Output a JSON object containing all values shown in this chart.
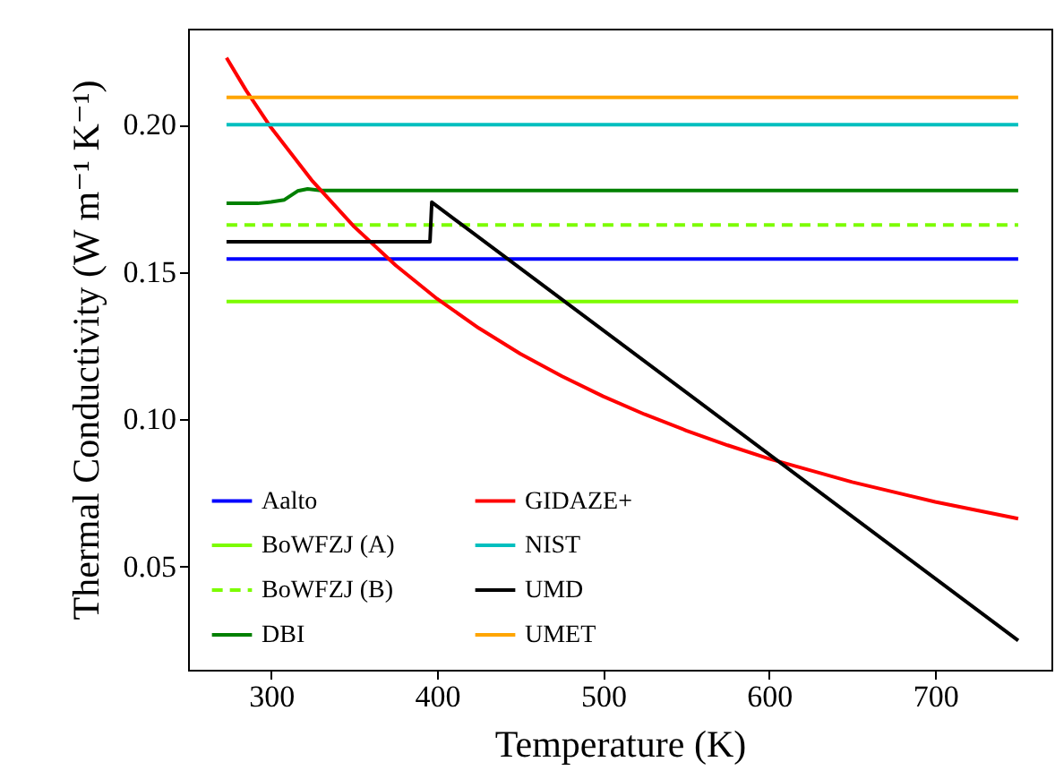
{
  "chart_data": {
    "type": "line",
    "xlabel": "Temperature (K)",
    "ylabel": "Thermal Conductivity (W m⁻¹ K⁻¹)",
    "xlim": [
      250,
      770
    ],
    "ylim": [
      0.015,
      0.2326
    ],
    "xticks": [
      300,
      400,
      500,
      600,
      700
    ],
    "yticks": [
      0.05,
      {
        "value": 0.1,
        "label": "0.10"
      },
      0.15,
      {
        "value": 0.2,
        "label": "0.20"
      }
    ],
    "grid": false,
    "legend": "bottom left",
    "line_style": "solid",
    "series": [
      {
        "name": "Aalto",
        "color": "#0000ff",
        "x": [
          273.15,
          750
        ],
        "values": [
          0.1544,
          0.1544
        ]
      },
      {
        "name": "BoWFZJ (A)",
        "color": "#7cfc00",
        "x": [
          273.15,
          750
        ],
        "values": [
          0.14,
          0.14
        ]
      },
      {
        "name": "BoWFZJ (B)",
        "color": "#7cfc00",
        "line_style": "dashed",
        "x": [
          273.15,
          750
        ],
        "values": [
          0.166,
          0.166
        ]
      },
      {
        "name": "DBI",
        "color": "#008000",
        "x": [
          273.15,
          292,
          300,
          308,
          316,
          322,
          330,
          750
        ],
        "values": [
          0.1733,
          0.1733,
          0.1738,
          0.1745,
          0.1775,
          0.1782,
          0.1777,
          0.1777
        ]
      },
      {
        "name": "GIDAZE+",
        "color": "#ff0000",
        "x": [
          273.15,
          285,
          300,
          325,
          350,
          375,
          400,
          425,
          450,
          475,
          500,
          525,
          550,
          575,
          600,
          650,
          700,
          750
        ],
        "values": [
          0.2227,
          0.2116,
          0.199,
          0.1808,
          0.1654,
          0.1523,
          0.1409,
          0.131,
          0.1223,
          0.1147,
          0.1078,
          0.1017,
          0.0962,
          0.0912,
          0.0866,
          0.0787,
          0.072,
          0.0663
        ]
      },
      {
        "name": "NIST",
        "color": "#00bfbf",
        "x": [
          273.15,
          750
        ],
        "values": [
          0.2,
          0.2
        ]
      },
      {
        "name": "UMD",
        "color": "#000000",
        "x": [
          273.15,
          395.7,
          396.8,
          750
        ],
        "values": [
          0.1603,
          0.1603,
          0.1737,
          0.0249
        ]
      },
      {
        "name": "UMET",
        "color": "#ffa500",
        "x": [
          273.15,
          750
        ],
        "values": [
          0.2093,
          0.2093
        ]
      }
    ]
  }
}
